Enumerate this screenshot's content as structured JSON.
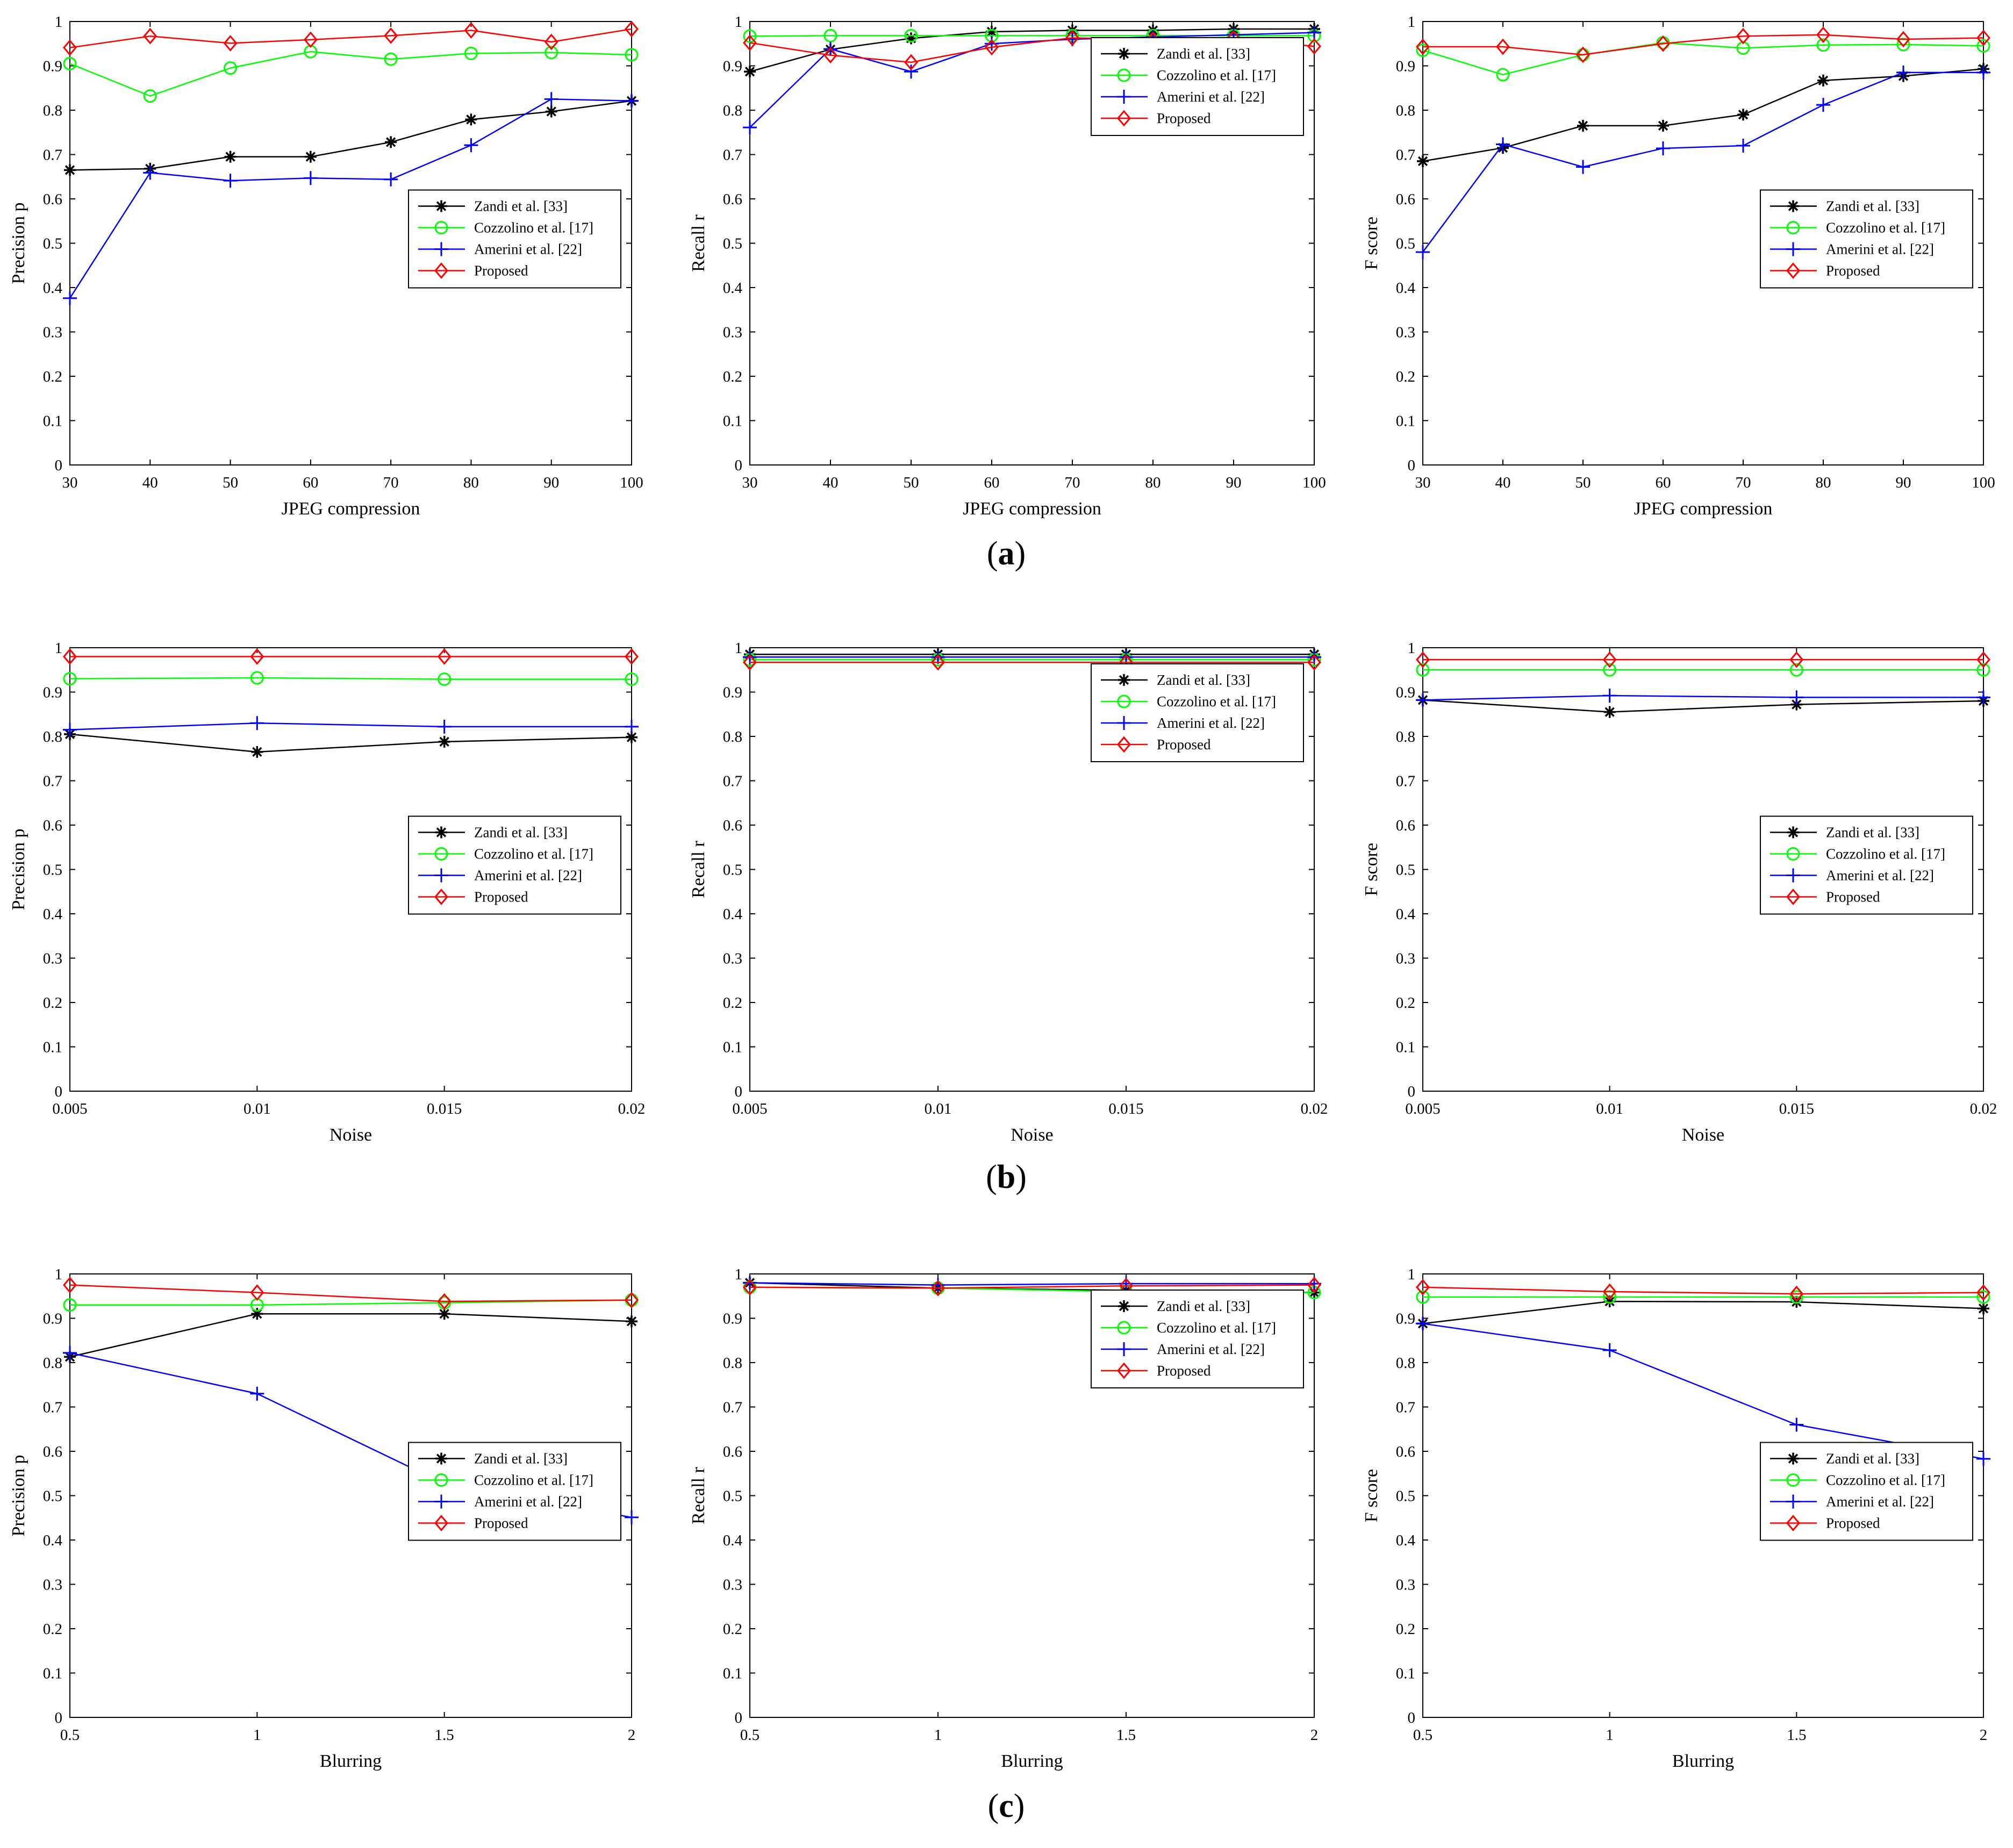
{
  "colors": {
    "zandi": "#000000",
    "cozzolino": "#00ff00",
    "amerini": "#0000ff",
    "proposed": "#ff0000"
  },
  "series_markers": {
    "zandi": "asterisk",
    "cozzolino": "circle",
    "amerini": "plus",
    "proposed": "diamond"
  },
  "legend_labels": {
    "zandi": "Zandi et al. [33]",
    "cozzolino": "Cozzolino et al. [17]",
    "amerini": "Amerini et al. [22]",
    "proposed": "Proposed"
  },
  "panel_labels": [
    {
      "open": "(",
      "letter": "a",
      "close": ")"
    },
    {
      "open": "(",
      "letter": "b",
      "close": ")"
    },
    {
      "open": "(",
      "letter": "c",
      "close": ")"
    }
  ],
  "chart_data": [
    {
      "type": "line",
      "row": 0,
      "col": 0,
      "xlabel": "JPEG compression",
      "ylabel": "Precision p",
      "x": [
        30,
        40,
        50,
        60,
        70,
        80,
        90,
        100
      ],
      "xticks": [
        "30",
        "40",
        "50",
        "60",
        "70",
        "80",
        "90",
        "100"
      ],
      "xlim": [
        30,
        100
      ],
      "ylim": [
        0,
        1
      ],
      "yticks": [
        "0",
        "0.1",
        "0.2",
        "0.3",
        "0.4",
        "0.5",
        "0.6",
        "0.7",
        "0.8",
        "0.9",
        "1"
      ],
      "legend": "center-right",
      "series": [
        {
          "name": "Zandi et al. [33]",
          "key": "zandi",
          "values": [
            0.665,
            0.668,
            0.695,
            0.695,
            0.728,
            0.779,
            0.797,
            0.821
          ]
        },
        {
          "name": "Cozzolino et al. [17]",
          "key": "cozzolino",
          "values": [
            0.905,
            0.832,
            0.895,
            0.932,
            0.915,
            0.928,
            0.93,
            0.925
          ]
        },
        {
          "name": "Amerini et al. [22]",
          "key": "amerini",
          "values": [
            0.376,
            0.659,
            0.641,
            0.647,
            0.644,
            0.721,
            0.825,
            0.821
          ]
        },
        {
          "name": "Proposed",
          "key": "proposed",
          "values": [
            0.941,
            0.967,
            0.951,
            0.959,
            0.968,
            0.98,
            0.954,
            0.983
          ]
        }
      ]
    },
    {
      "type": "line",
      "row": 0,
      "col": 1,
      "xlabel": "JPEG compression",
      "ylabel": "Recall r",
      "x": [
        30,
        40,
        50,
        60,
        70,
        80,
        90,
        100
      ],
      "xticks": [
        "30",
        "40",
        "50",
        "60",
        "70",
        "80",
        "90",
        "100"
      ],
      "xlim": [
        30,
        100
      ],
      "ylim": [
        0,
        1
      ],
      "yticks": [
        "0",
        "0.1",
        "0.2",
        "0.3",
        "0.4",
        "0.5",
        "0.6",
        "0.7",
        "0.8",
        "0.9",
        "1"
      ],
      "legend": "top-right",
      "series": [
        {
          "name": "Zandi et al. [33]",
          "key": "zandi",
          "values": [
            0.887,
            0.937,
            0.962,
            0.977,
            0.98,
            0.98,
            0.983,
            0.983
          ]
        },
        {
          "name": "Cozzolino et al. [17]",
          "key": "cozzolino",
          "values": [
            0.967,
            0.968,
            0.968,
            0.968,
            0.968,
            0.968,
            0.968,
            0.968
          ]
        },
        {
          "name": "Amerini et al. [22]",
          "key": "amerini",
          "values": [
            0.761,
            0.938,
            0.887,
            0.95,
            0.96,
            0.965,
            0.97,
            0.975
          ]
        },
        {
          "name": "Proposed",
          "key": "proposed",
          "values": [
            0.952,
            0.924,
            0.908,
            0.942,
            0.963,
            0.959,
            0.962,
            0.944
          ]
        }
      ]
    },
    {
      "type": "line",
      "row": 0,
      "col": 2,
      "xlabel": "JPEG compression",
      "ylabel": "F score",
      "x": [
        30,
        40,
        50,
        60,
        70,
        80,
        90,
        100
      ],
      "xticks": [
        "30",
        "40",
        "50",
        "60",
        "70",
        "80",
        "90",
        "100"
      ],
      "xlim": [
        30,
        100
      ],
      "ylim": [
        0,
        1
      ],
      "yticks": [
        "0",
        "0.1",
        "0.2",
        "0.3",
        "0.4",
        "0.5",
        "0.6",
        "0.7",
        "0.8",
        "0.9",
        "1"
      ],
      "legend": "center-right",
      "series": [
        {
          "name": "Zandi et al. [33]",
          "key": "zandi",
          "values": [
            0.685,
            0.715,
            0.765,
            0.765,
            0.79,
            0.867,
            0.877,
            0.893
          ]
        },
        {
          "name": "Cozzolino et al. [17]",
          "key": "cozzolino",
          "values": [
            0.935,
            0.88,
            0.925,
            0.952,
            0.94,
            0.947,
            0.948,
            0.945
          ]
        },
        {
          "name": "Amerini et al. [22]",
          "key": "amerini",
          "values": [
            0.48,
            0.723,
            0.672,
            0.714,
            0.72,
            0.812,
            0.885,
            0.885
          ]
        },
        {
          "name": "Proposed",
          "key": "proposed",
          "values": [
            0.943,
            0.943,
            0.925,
            0.95,
            0.967,
            0.97,
            0.96,
            0.963
          ]
        }
      ]
    },
    {
      "type": "line",
      "row": 1,
      "col": 0,
      "xlabel": "Noise",
      "ylabel": "Precision p",
      "x": [
        0.005,
        0.01,
        0.015,
        0.02
      ],
      "xticks": [
        "0.005",
        "0.01",
        "0.015",
        "0.02"
      ],
      "xlim": [
        0.005,
        0.02
      ],
      "ylim": [
        0,
        1
      ],
      "yticks": [
        "0",
        "0.1",
        "0.2",
        "0.3",
        "0.4",
        "0.5",
        "0.6",
        "0.7",
        "0.8",
        "0.9",
        "1"
      ],
      "legend": "center-right",
      "series": [
        {
          "name": "Zandi et al. [33]",
          "key": "zandi",
          "values": [
            0.805,
            0.765,
            0.788,
            0.798
          ]
        },
        {
          "name": "Cozzolino et al. [17]",
          "key": "cozzolino",
          "values": [
            0.93,
            0.932,
            0.929,
            0.929
          ]
        },
        {
          "name": "Amerini et al. [22]",
          "key": "amerini",
          "values": [
            0.815,
            0.83,
            0.822,
            0.822
          ]
        },
        {
          "name": "Proposed",
          "key": "proposed",
          "values": [
            0.98,
            0.98,
            0.98,
            0.98
          ]
        }
      ]
    },
    {
      "type": "line",
      "row": 1,
      "col": 1,
      "xlabel": "Noise",
      "ylabel": "Recall r",
      "x": [
        0.005,
        0.01,
        0.015,
        0.02
      ],
      "xticks": [
        "0.005",
        "0.01",
        "0.015",
        "0.02"
      ],
      "xlim": [
        0.005,
        0.02
      ],
      "ylim": [
        0,
        1
      ],
      "yticks": [
        "0",
        "0.1",
        "0.2",
        "0.3",
        "0.4",
        "0.5",
        "0.6",
        "0.7",
        "0.8",
        "0.9",
        "1"
      ],
      "legend": "top-right",
      "series": [
        {
          "name": "Zandi et al. [33]",
          "key": "zandi",
          "values": [
            0.985,
            0.985,
            0.985,
            0.985
          ]
        },
        {
          "name": "Cozzolino et al. [17]",
          "key": "cozzolino",
          "values": [
            0.973,
            0.973,
            0.973,
            0.973
          ]
        },
        {
          "name": "Amerini et al. [22]",
          "key": "amerini",
          "values": [
            0.979,
            0.979,
            0.979,
            0.979
          ]
        },
        {
          "name": "Proposed",
          "key": "proposed",
          "values": [
            0.967,
            0.967,
            0.967,
            0.967
          ]
        }
      ]
    },
    {
      "type": "line",
      "row": 1,
      "col": 2,
      "xlabel": "Noise",
      "ylabel": "F score",
      "x": [
        0.005,
        0.01,
        0.015,
        0.02
      ],
      "xticks": [
        "0.005",
        "0.01",
        "0.015",
        "0.02"
      ],
      "xlim": [
        0.005,
        0.02
      ],
      "ylim": [
        0,
        1
      ],
      "yticks": [
        "0",
        "0.1",
        "0.2",
        "0.3",
        "0.4",
        "0.5",
        "0.6",
        "0.7",
        "0.8",
        "0.9",
        "1"
      ],
      "legend": "center-right",
      "series": [
        {
          "name": "Zandi et al. [33]",
          "key": "zandi",
          "values": [
            0.882,
            0.855,
            0.872,
            0.88
          ]
        },
        {
          "name": "Cozzolino et al. [17]",
          "key": "cozzolino",
          "values": [
            0.95,
            0.95,
            0.95,
            0.95
          ]
        },
        {
          "name": "Amerini et al. [22]",
          "key": "amerini",
          "values": [
            0.882,
            0.892,
            0.888,
            0.888
          ]
        },
        {
          "name": "Proposed",
          "key": "proposed",
          "values": [
            0.973,
            0.973,
            0.973,
            0.973
          ]
        }
      ]
    },
    {
      "type": "line",
      "row": 2,
      "col": 0,
      "xlabel": "Blurring",
      "ylabel": "Precision p",
      "x": [
        0.5,
        1,
        1.5,
        2
      ],
      "xticks": [
        "0.5",
        "1",
        "1.5",
        "2"
      ],
      "xlim": [
        0.5,
        2
      ],
      "ylim": [
        0,
        1
      ],
      "yticks": [
        "0",
        "0.1",
        "0.2",
        "0.3",
        "0.4",
        "0.5",
        "0.6",
        "0.7",
        "0.8",
        "0.9",
        "1"
      ],
      "legend": "center-right",
      "series": [
        {
          "name": "Zandi et al. [33]",
          "key": "zandi",
          "values": [
            0.813,
            0.91,
            0.91,
            0.893
          ]
        },
        {
          "name": "Cozzolino et al. [17]",
          "key": "cozzolino",
          "values": [
            0.93,
            0.93,
            0.935,
            0.941
          ]
        },
        {
          "name": "Amerini et al. [22]",
          "key": "amerini",
          "values": [
            0.822,
            0.73,
            0.527,
            0.451
          ]
        },
        {
          "name": "Proposed",
          "key": "proposed",
          "values": [
            0.975,
            0.958,
            0.938,
            0.941
          ]
        }
      ]
    },
    {
      "type": "line",
      "row": 2,
      "col": 1,
      "xlabel": "Blurring",
      "ylabel": "Recall r",
      "x": [
        0.5,
        1,
        1.5,
        2
      ],
      "xticks": [
        "0.5",
        "1",
        "1.5",
        "2"
      ],
      "xlim": [
        0.5,
        2
      ],
      "ylim": [
        0,
        1
      ],
      "yticks": [
        "0",
        "0.1",
        "0.2",
        "0.3",
        "0.4",
        "0.5",
        "0.6",
        "0.7",
        "0.8",
        "0.9",
        "1"
      ],
      "legend": "top-right",
      "series": [
        {
          "name": "Zandi et al. [33]",
          "key": "zandi",
          "values": [
            0.98,
            0.968,
            0.963,
            0.958
          ]
        },
        {
          "name": "Cozzolino et al. [17]",
          "key": "cozzolino",
          "values": [
            0.97,
            0.968,
            0.96,
            0.958
          ]
        },
        {
          "name": "Amerini et al. [22]",
          "key": "amerini",
          "values": [
            0.98,
            0.975,
            0.978,
            0.978
          ]
        },
        {
          "name": "Proposed",
          "key": "proposed",
          "values": [
            0.97,
            0.968,
            0.973,
            0.975
          ]
        }
      ]
    },
    {
      "type": "line",
      "row": 2,
      "col": 2,
      "xlabel": "Blurring",
      "ylabel": "F score",
      "x": [
        0.5,
        1,
        1.5,
        2
      ],
      "xticks": [
        "0.5",
        "1",
        "1.5",
        "2"
      ],
      "xlim": [
        0.5,
        2
      ],
      "ylim": [
        0,
        1
      ],
      "yticks": [
        "0",
        "0.1",
        "0.2",
        "0.3",
        "0.4",
        "0.5",
        "0.6",
        "0.7",
        "0.8",
        "0.9",
        "1"
      ],
      "legend": "center-right",
      "series": [
        {
          "name": "Zandi et al. [33]",
          "key": "zandi",
          "values": [
            0.888,
            0.938,
            0.937,
            0.922
          ]
        },
        {
          "name": "Cozzolino et al. [17]",
          "key": "cozzolino",
          "values": [
            0.948,
            0.948,
            0.948,
            0.948
          ]
        },
        {
          "name": "Amerini et al. [22]",
          "key": "amerini",
          "values": [
            0.888,
            0.828,
            0.66,
            0.583
          ]
        },
        {
          "name": "Proposed",
          "key": "proposed",
          "values": [
            0.97,
            0.96,
            0.955,
            0.958
          ]
        }
      ]
    }
  ]
}
